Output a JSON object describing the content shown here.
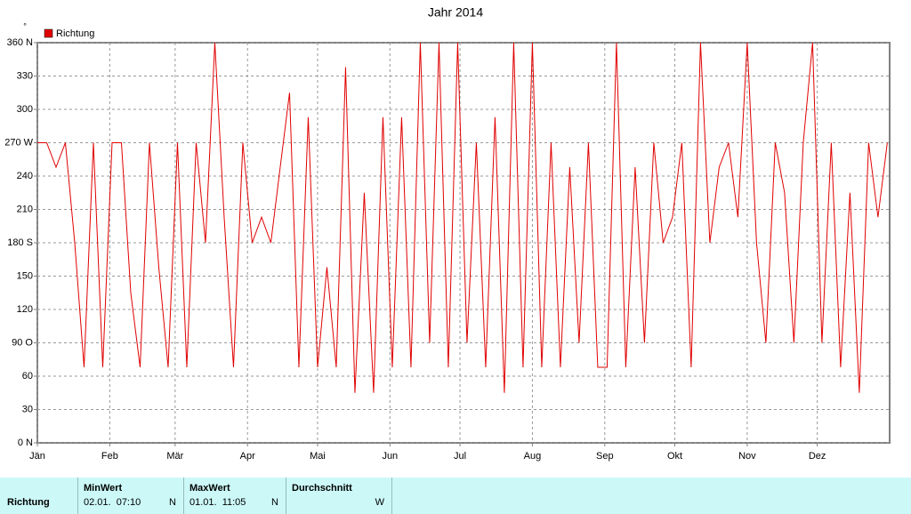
{
  "chart_data": {
    "type": "line",
    "title": "Jahr 2014",
    "unit": "°",
    "xlim": [
      0,
      365
    ],
    "xticks": [
      {
        "value": 0,
        "label": "Jän"
      },
      {
        "value": 31,
        "label": "Feb"
      },
      {
        "value": 59,
        "label": "Mär"
      },
      {
        "value": 90,
        "label": "Apr"
      },
      {
        "value": 120,
        "label": "Mai"
      },
      {
        "value": 151,
        "label": "Jun"
      },
      {
        "value": 181,
        "label": "Jul"
      },
      {
        "value": 212,
        "label": "Aug"
      },
      {
        "value": 243,
        "label": "Sep"
      },
      {
        "value": 273,
        "label": "Okt"
      },
      {
        "value": 304,
        "label": "Nov"
      },
      {
        "value": 334,
        "label": "Dez"
      }
    ],
    "ylim": [
      0,
      360
    ],
    "yticks": [
      {
        "value": 0,
        "label": "0 N"
      },
      30,
      60,
      {
        "value": 90,
        "label": "90 O"
      },
      120,
      150,
      {
        "value": 180,
        "label": "180 S"
      },
      210,
      240,
      {
        "value": 270,
        "label": "270 W"
      },
      300,
      330,
      {
        "value": 360,
        "label": "360 N"
      }
    ],
    "grid": true,
    "series": [
      {
        "name": "Richtung",
        "color": "#e00000",
        "x": [
          0,
          4,
          8,
          12,
          16,
          20,
          24,
          28,
          32,
          36,
          40,
          44,
          48,
          52,
          56,
          60,
          64,
          68,
          72,
          76,
          80,
          84,
          88,
          92,
          96,
          100,
          104,
          108,
          112,
          116,
          120,
          124,
          128,
          132,
          136,
          140,
          144,
          148,
          152,
          156,
          160,
          164,
          168,
          172,
          176,
          180,
          184,
          188,
          192,
          196,
          200,
          204,
          208,
          212,
          216,
          220,
          224,
          228,
          232,
          236,
          240,
          244,
          248,
          252,
          256,
          260,
          264,
          268,
          272,
          276,
          280,
          284,
          288,
          292,
          296,
          300,
          304,
          308,
          312,
          316,
          320,
          324,
          328,
          332,
          336,
          340,
          344,
          348,
          352,
          356,
          360,
          364
        ],
        "values": [
          270,
          270,
          248,
          270,
          180,
          68,
          270,
          68,
          270,
          270,
          135,
          68,
          270,
          158,
          68,
          270,
          68,
          270,
          180,
          360,
          203,
          68,
          270,
          180,
          203,
          180,
          248,
          315,
          68,
          293,
          68,
          158,
          68,
          338,
          45,
          225,
          45,
          293,
          68,
          293,
          68,
          360,
          90,
          360,
          68,
          360,
          90,
          270,
          68,
          293,
          45,
          360,
          68,
          360,
          68,
          270,
          68,
          248,
          90,
          270,
          68,
          68,
          360,
          68,
          248,
          90,
          270,
          180,
          203,
          270,
          68,
          360,
          180,
          248,
          270,
          203,
          360,
          180,
          90,
          270,
          225,
          90,
          270,
          360,
          90,
          270,
          68,
          225,
          45,
          270,
          203,
          270
        ]
      }
    ]
  },
  "table": {
    "row_label": "Richtung",
    "columns": [
      {
        "header": "MinWert",
        "value": "02.01.  07:10",
        "direction": "N"
      },
      {
        "header": "MaxWert",
        "value": "01.01.  11:05",
        "direction": "N"
      },
      {
        "header": "Durchschnitt",
        "direction": "W"
      }
    ]
  }
}
